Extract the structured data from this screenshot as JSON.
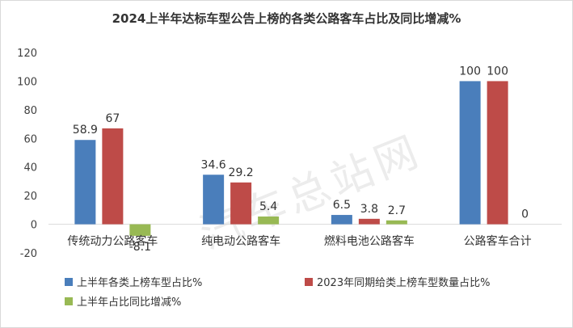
{
  "chart_data": {
    "type": "bar",
    "title": "2024上半年达标车型公告上榜的各类公路客车占比及同比增减%",
    "categories": [
      "传统动力公路客车",
      "纯电动公路客车",
      "燃料电池公路客车",
      "公路客车合计"
    ],
    "series": [
      {
        "name": "上半年各类上榜车型占比%",
        "values": [
          58.9,
          34.6,
          6.5,
          100
        ],
        "color": "#4a7ebb"
      },
      {
        "name": "2023年同期给类上榜车型数量占比%",
        "values": [
          67,
          29.2,
          3.8,
          100
        ],
        "color": "#be4b48"
      },
      {
        "name": "上半年占比同比增减%",
        "values": [
          -8.1,
          5.4,
          2.7,
          0
        ],
        "color": "#98b954"
      }
    ],
    "ylim": [
      -20,
      120
    ],
    "yticks": [
      -20,
      0,
      20,
      40,
      60,
      80,
      100,
      120
    ],
    "xlabel": "",
    "ylabel": "",
    "legend": "bottom",
    "grid": false
  },
  "watermark": "汽车总站网"
}
